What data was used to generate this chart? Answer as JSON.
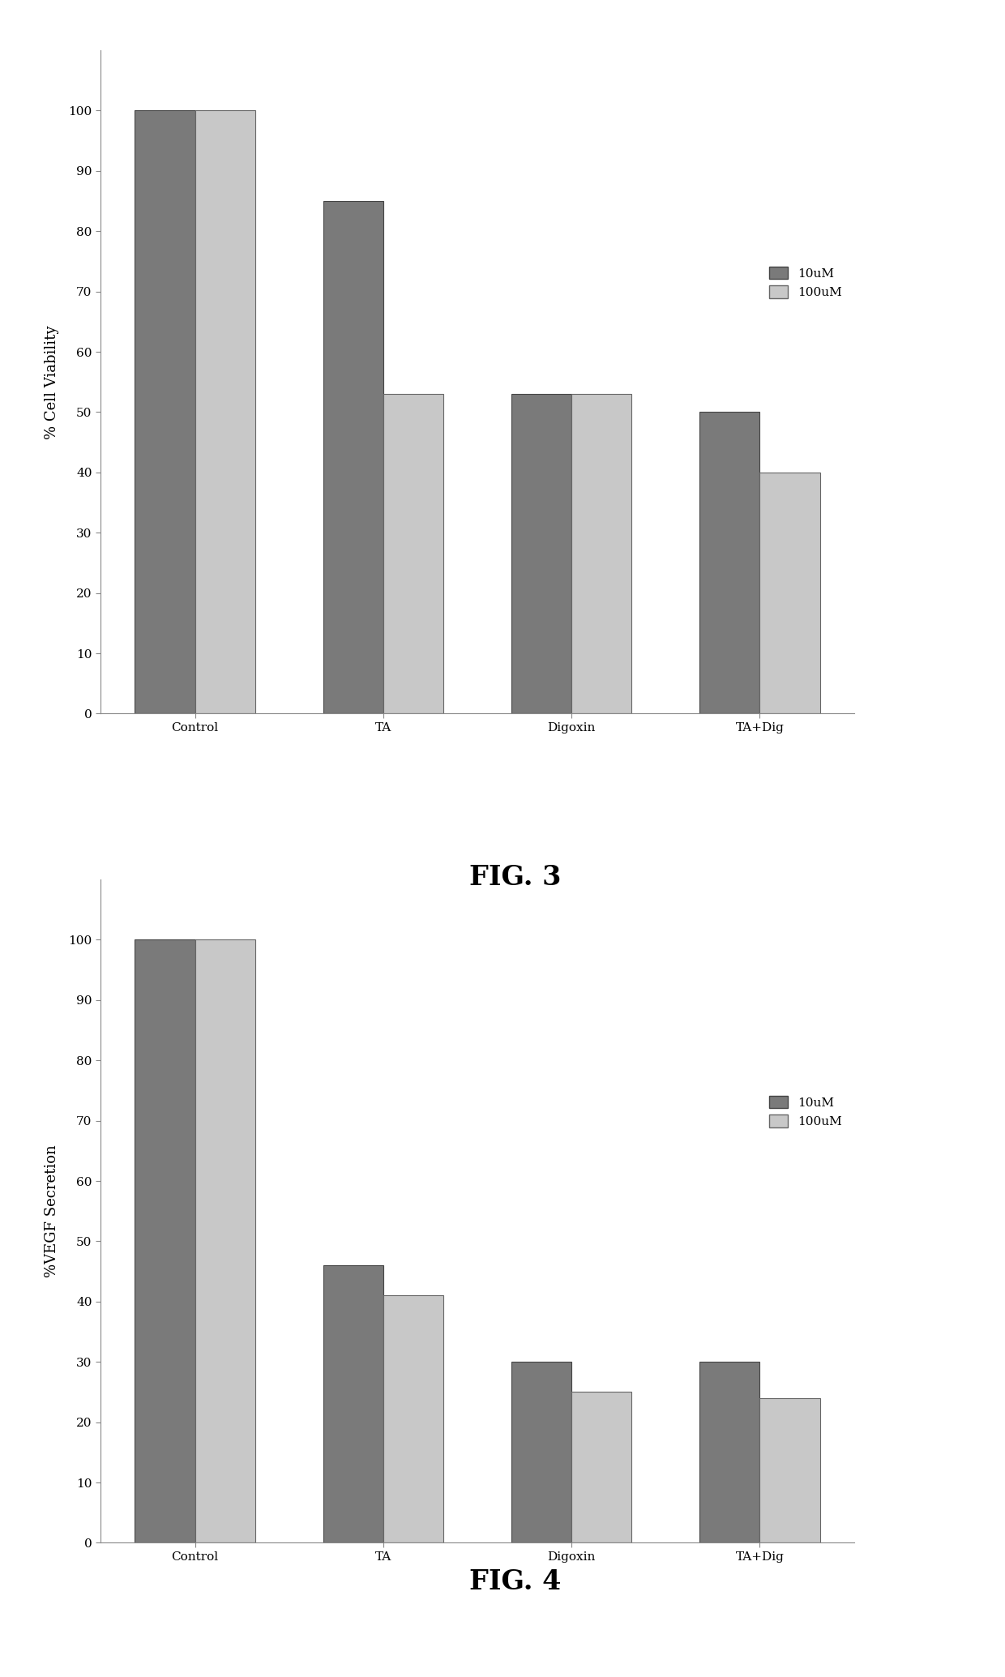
{
  "fig3": {
    "categories": [
      "Control",
      "TA",
      "Digoxin",
      "TA+Dig"
    ],
    "series_10uM": [
      100,
      85,
      53,
      50
    ],
    "series_100uM": [
      100,
      53,
      53,
      40
    ],
    "ylabel": "% Cell Viability",
    "ylim": [
      0,
      110
    ],
    "yticks": [
      0,
      10,
      20,
      30,
      40,
      50,
      60,
      70,
      80,
      90,
      100
    ],
    "legend_labels": [
      "10uM",
      "100uM"
    ],
    "color_10uM": "#7a7a7a",
    "color_100uM": "#c8c8c8",
    "caption": "FIG. 3"
  },
  "fig4": {
    "categories": [
      "Control",
      "TA",
      "Digoxin",
      "TA+Dig"
    ],
    "series_10uM": [
      100,
      46,
      30,
      30
    ],
    "series_100uM": [
      100,
      41,
      25,
      24
    ],
    "ylabel": "%VEGF Secretion",
    "ylim": [
      0,
      110
    ],
    "yticks": [
      0,
      10,
      20,
      30,
      40,
      50,
      60,
      70,
      80,
      90,
      100
    ],
    "legend_labels": [
      "10uM",
      "100uM"
    ],
    "color_10uM": "#7a7a7a",
    "color_100uM": "#c8c8c8",
    "caption": "FIG. 4"
  },
  "background_color": "#ffffff",
  "bar_width": 0.32,
  "figure_width": 12.4,
  "figure_height": 20.69,
  "caption_fontsize": 24,
  "axis_label_fontsize": 13,
  "tick_fontsize": 11,
  "legend_fontsize": 11
}
